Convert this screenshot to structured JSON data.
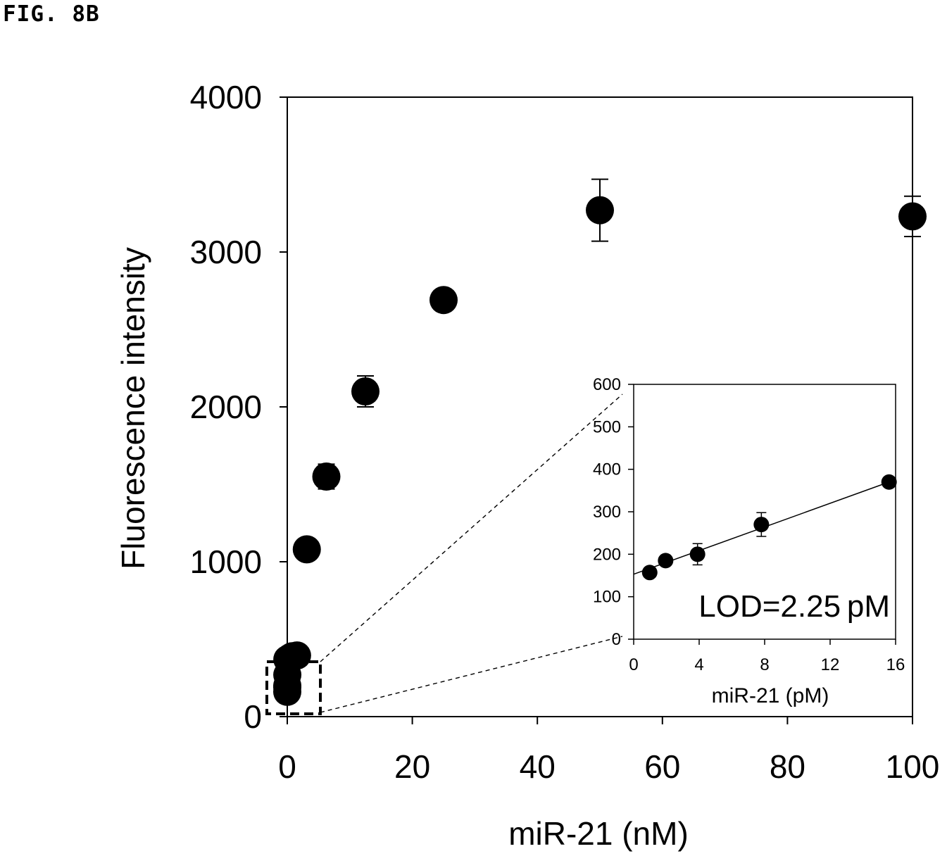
{
  "figure_label": "FIG. 8B",
  "chart_data": [
    {
      "type": "scatter",
      "xlabel": "miR-21 (nM)",
      "ylabel": "Fluorescence intensity",
      "xlim": [
        0,
        100
      ],
      "ylim": [
        0,
        4000
      ],
      "x_ticks": [
        0,
        20,
        40,
        60,
        80,
        100
      ],
      "y_ticks": [
        0,
        1000,
        2000,
        3000,
        4000
      ],
      "x_tick_labels": [
        "0",
        "20",
        "40",
        "60",
        "80",
        "100"
      ],
      "y_tick_labels": [
        "0",
        "1000",
        "2000",
        "3000",
        "4000"
      ],
      "grid": false,
      "points": [
        {
          "x": 0,
          "y": 160,
          "err": 0
        },
        {
          "x": 0,
          "y": 190,
          "err": 0
        },
        {
          "x": 0.0039,
          "y": 200,
          "err": 0
        },
        {
          "x": 0.0078,
          "y": 270,
          "err": 0
        },
        {
          "x": 0.0156,
          "y": 370,
          "err": 0
        },
        {
          "x": 0.39,
          "y": 380,
          "err": 0
        },
        {
          "x": 0.78,
          "y": 390,
          "err": 0
        },
        {
          "x": 1.56,
          "y": 395,
          "err": 0
        },
        {
          "x": 3.125,
          "y": 1080,
          "err": 0
        },
        {
          "x": 6.25,
          "y": 1550,
          "err": 80
        },
        {
          "x": 12.5,
          "y": 2100,
          "err": 100
        },
        {
          "x": 25,
          "y": 2690,
          "err": 30
        },
        {
          "x": 50,
          "y": 3270,
          "err": 200
        },
        {
          "x": 100,
          "y": 3230,
          "err": 130
        }
      ]
    },
    {
      "type": "scatter",
      "role": "inset",
      "xlabel": "miR-21 (pM)",
      "ylabel": "",
      "xlim": [
        0,
        16
      ],
      "ylim": [
        0,
        600
      ],
      "x_ticks": [
        0,
        4,
        8,
        12,
        16
      ],
      "y_ticks": [
        0,
        100,
        200,
        300,
        400,
        500,
        600
      ],
      "x_tick_labels": [
        "0",
        "4",
        "8",
        "12",
        "16"
      ],
      "y_tick_labels": [
        "0",
        "100",
        "200",
        "300",
        "400",
        "500",
        "600"
      ],
      "grid": false,
      "points": [
        {
          "x": 0.98,
          "y": 157,
          "err": 8
        },
        {
          "x": 1.95,
          "y": 185,
          "err": 8
        },
        {
          "x": 3.9,
          "y": 200,
          "err": 25
        },
        {
          "x": 7.8,
          "y": 270,
          "err": 28
        },
        {
          "x": 15.6,
          "y": 370,
          "err": 8
        }
      ],
      "fit_line": {
        "x": [
          0,
          15.6
        ],
        "y": [
          153,
          370
        ]
      },
      "annotation": "LOD=2.25 pM"
    }
  ]
}
